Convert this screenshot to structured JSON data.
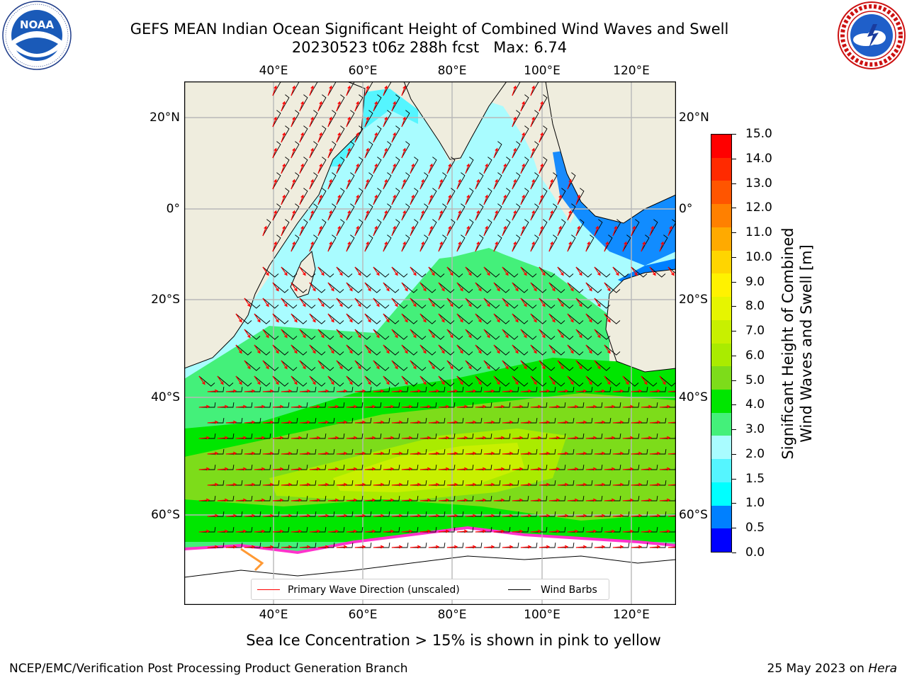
{
  "title": {
    "line1": "GEFS MEAN Indian Ocean Significant Height of Combined Wind Waves and Swell",
    "line2": "20230523 t06z 288h fcst   Max: 6.74"
  },
  "logos": {
    "left": {
      "text": "NOAA",
      "ring": "NATIONAL OCEANIC AND ATMOSPHERIC ADMINISTRATION · U.S. DEPARTMENT OF COMMERCE"
    },
    "right": {
      "ring": "NATIONAL WEATHER SERVICE"
    }
  },
  "map": {
    "lon_ticks": [
      "40°E",
      "60°E",
      "80°E",
      "100°E",
      "120°E"
    ],
    "lat_ticks": [
      "20°N",
      "0°",
      "20°S",
      "40°S",
      "60°S"
    ],
    "lon_range": [
      20,
      130
    ],
    "lat_range": [
      -75,
      27
    ],
    "grid": true,
    "legend": {
      "wave_label": "Primary Wave Direction (unscaled)",
      "wind_label": "Wind Barbs",
      "wave_color": "#ff0000",
      "wind_color": "#000000"
    },
    "land_color": "#efedde",
    "ice_color": "#ffffff"
  },
  "colorbar": {
    "label_line1": "Significant Height of Combined",
    "label_line2": "Wind Waves and Swell [m]",
    "ticks": [
      "15.0",
      "14.0",
      "13.0",
      "12.0",
      "11.0",
      "10.0",
      "9.0",
      "8.0",
      "7.0",
      "6.0",
      "5.0",
      "4.0",
      "3.0",
      "2.0",
      "1.5",
      "1.0",
      "0.5",
      "0.0"
    ],
    "colors": [
      "#ff0000",
      "#ff2a00",
      "#ff5500",
      "#ff8000",
      "#ffaa00",
      "#ffd500",
      "#fff200",
      "#e6f500",
      "#c8f000",
      "#aaeb00",
      "#7ddc1a",
      "#00e600",
      "#44f07a",
      "#a9fcff",
      "#55f5ff",
      "#00ffff",
      "#0080ff",
      "#0000ff"
    ]
  },
  "footer": {
    "note": "Sea Ice Concentration > 15% is shown in pink to yellow",
    "left_credit": "NCEP/EMC/Verification Post Processing Product Generation Branch",
    "right_credit_prefix": "25 May 2023 on ",
    "right_credit_host": "Hera"
  }
}
